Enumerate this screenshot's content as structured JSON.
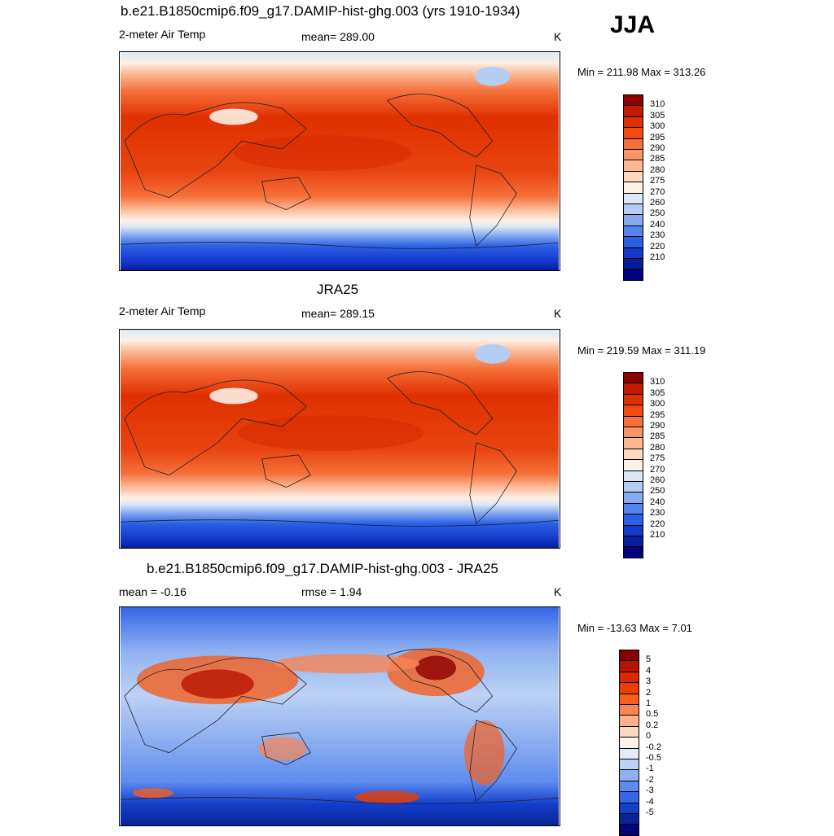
{
  "season": "JJA",
  "panels": [
    {
      "title": "b.e21.B1850cmip6.f09_g17.DAMIP-hist-ghg.003 (yrs 1910-1934)",
      "left": "2-meter Air Temp",
      "center": "mean= 289.00",
      "units": "K",
      "minmax": "Min = 211.98 Max = 313.26",
      "kind": "abs",
      "colorbar_labels": [
        "310",
        "305",
        "300",
        "295",
        "290",
        "285",
        "280",
        "275",
        "270",
        "260",
        "250",
        "240",
        "230",
        "220",
        "210"
      ],
      "colorbar_colors": [
        "#8b0000",
        "#c01a00",
        "#e03000",
        "#f04a10",
        "#f5703a",
        "#f99466",
        "#fcb894",
        "#fdd9bf",
        "#fdf0e4",
        "#dbe9f6",
        "#b4cdf2",
        "#87aaf0",
        "#5584ee",
        "#2b5fe6",
        "#1438c9",
        "#061e9e",
        "#00037a"
      ]
    },
    {
      "title": "JRA25",
      "left": "2-meter Air Temp",
      "center": "mean= 289.15",
      "units": "K",
      "minmax": "Min = 219.59 Max = 311.19",
      "kind": "abs",
      "colorbar_labels": [
        "310",
        "305",
        "300",
        "295",
        "290",
        "285",
        "280",
        "275",
        "270",
        "260",
        "250",
        "240",
        "230",
        "220",
        "210"
      ],
      "colorbar_colors": [
        "#8b0000",
        "#c01a00",
        "#e03000",
        "#f04a10",
        "#f5703a",
        "#f99466",
        "#fcb894",
        "#fdd9bf",
        "#fdf0e4",
        "#dbe9f6",
        "#b4cdf2",
        "#87aaf0",
        "#5584ee",
        "#2b5fe6",
        "#1438c9",
        "#061e9e",
        "#00037a"
      ]
    },
    {
      "title": "b.e21.B1850cmip6.f09_g17.DAMIP-hist-ghg.003 - JRA25",
      "left": "mean =  -0.16",
      "center": "rmse =    1.94",
      "units": "K",
      "minmax": "Min = -13.63 Max =   7.01",
      "kind": "diff",
      "colorbar_labels": [
        "5",
        "4",
        "3",
        "2",
        "1",
        "0.5",
        "0.2",
        "0",
        "-0.2",
        "-0.5",
        "-1",
        "-2",
        "-3",
        "-4",
        "-5"
      ],
      "colorbar_colors": [
        "#8b0000",
        "#b81400",
        "#d82800",
        "#ec3e00",
        "#f55f1f",
        "#f88552",
        "#fbb08a",
        "#fdd6bf",
        "#fdf3ea",
        "#e2ecf9",
        "#bcd2f5",
        "#8fb1f1",
        "#5e8cee",
        "#3366e8",
        "#1540cc",
        "#082496",
        "#000878"
      ]
    }
  ]
}
